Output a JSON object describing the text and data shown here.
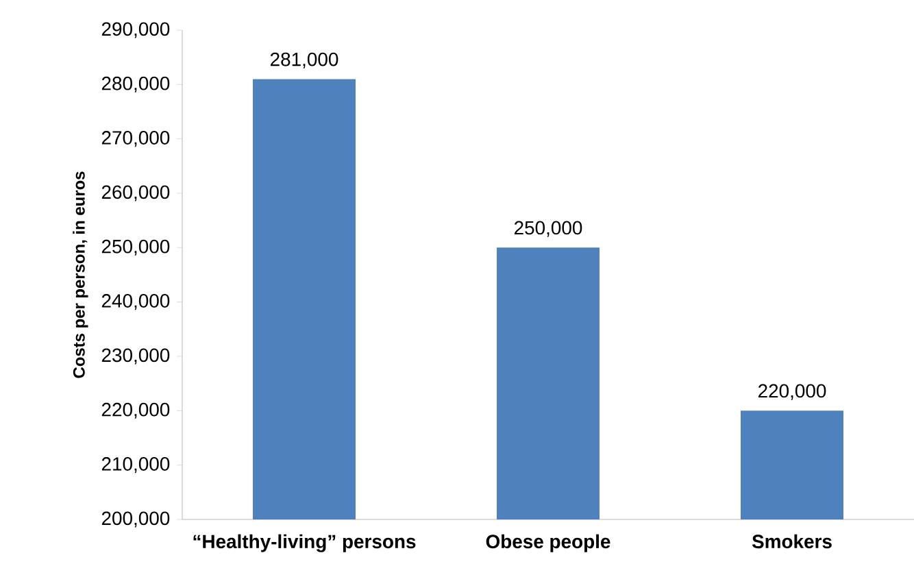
{
  "chart_data": {
    "type": "bar",
    "ylabel": "Costs per person, in euros",
    "categories": [
      "“Healthy-living” persons",
      "Obese people",
      "Smokers"
    ],
    "values": [
      281000,
      250000,
      220000
    ],
    "color": "#4f81bd",
    "value_labels": [
      "281,000",
      "250,000",
      "220,000"
    ],
    "ylim": [
      200000,
      290000
    ],
    "yticks": [
      {
        "value": 200000,
        "label": "200,000"
      },
      {
        "value": 210000,
        "label": "210,000"
      },
      {
        "value": 220000,
        "label": "220,000"
      },
      {
        "value": 230000,
        "label": "230,000"
      },
      {
        "value": 240000,
        "label": "240,000"
      },
      {
        "value": 250000,
        "label": "250,000"
      },
      {
        "value": 260000,
        "label": "260,000"
      },
      {
        "value": 270000,
        "label": "270,000"
      },
      {
        "value": 280000,
        "label": "280,000"
      },
      {
        "value": 290000,
        "label": "290,000"
      }
    ],
    "grid": false
  }
}
